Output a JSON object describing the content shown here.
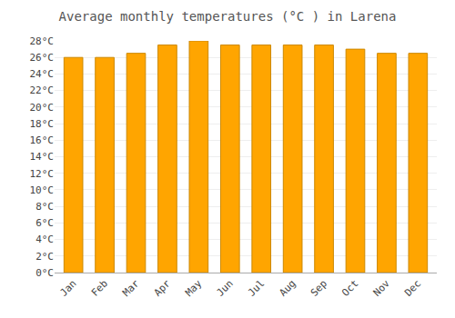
{
  "chart_data": {
    "type": "bar",
    "title": "Average monthly temperatures (°C ) in Larena",
    "categories": [
      "Jan",
      "Feb",
      "Mar",
      "Apr",
      "May",
      "Jun",
      "Jul",
      "Aug",
      "Sep",
      "Oct",
      "Nov",
      "Dec"
    ],
    "values": [
      26.0,
      26.0,
      26.5,
      27.5,
      28.0,
      27.5,
      27.5,
      27.5,
      27.5,
      27.0,
      26.5,
      26.5
    ],
    "color": "#FFA500",
    "ylim": [
      0,
      28
    ],
    "yticks": [
      {
        "value": 0,
        "label": "0°C"
      },
      {
        "value": 2,
        "label": "2°C"
      },
      {
        "value": 4,
        "label": "4°C"
      },
      {
        "value": 6,
        "label": "6°C"
      },
      {
        "value": 8,
        "label": "8°C"
      },
      {
        "value": 10,
        "label": "10°C"
      },
      {
        "value": 12,
        "label": "12°C"
      },
      {
        "value": 14,
        "label": "14°C"
      },
      {
        "value": 16,
        "label": "16°C"
      },
      {
        "value": 18,
        "label": "18°C"
      },
      {
        "value": 20,
        "label": "20°C"
      },
      {
        "value": 22,
        "label": "22°C"
      },
      {
        "value": 24,
        "label": "24°C"
      },
      {
        "value": 26,
        "label": "26°C"
      },
      {
        "value": 28,
        "label": "28°C"
      }
    ],
    "grid": true
  }
}
